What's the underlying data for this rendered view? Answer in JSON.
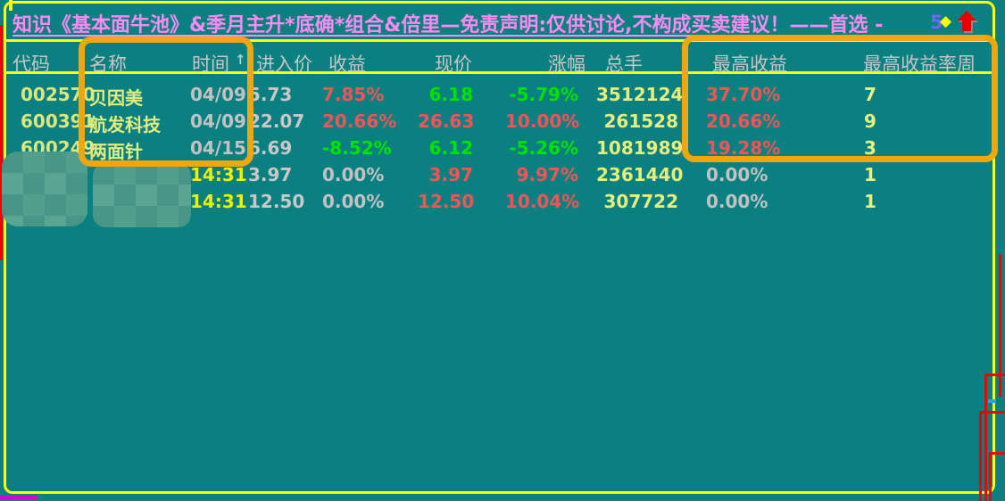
{
  "window": {
    "title": {
      "main": "知识《基本面牛池》&季月主升*底确*组合&倍里—免责声明:仅供讨论,不构成买卖建议！——首选 -",
      "number": "5",
      "diamond": "◆",
      "arrow_icon": "up-arrow-icon"
    }
  },
  "table": {
    "sort_icon": "↑",
    "sorted_column": "时间",
    "headers": [
      "代码",
      "名称",
      "时间",
      "进入价",
      "收益",
      "现价",
      "涨幅",
      "总手",
      "最高收益",
      "最高收益率周"
    ],
    "rows": [
      {
        "values": [
          "002570",
          "贝因美",
          "04/09",
          "5.73",
          "7.85%",
          "6.18",
          "-5.79%",
          "3512124",
          "37.70%",
          "7"
        ],
        "colors": [
          "code",
          "name",
          "date",
          "price",
          "red",
          "green",
          "green",
          "vol",
          "red",
          "week"
        ]
      },
      {
        "values": [
          "600391",
          "航发科技",
          "04/09",
          "22.07",
          "20.66%",
          "26.63",
          "10.00%",
          "261528",
          "20.66%",
          "9"
        ],
        "colors": [
          "code",
          "name",
          "date",
          "price",
          "red",
          "red",
          "red",
          "vol",
          "red",
          "week"
        ]
      },
      {
        "values": [
          "600249",
          "两面针",
          "04/15",
          "6.69",
          "-8.52%",
          "6.12",
          "-5.26%",
          "1081989",
          "19.28%",
          "3"
        ],
        "colors": [
          "code",
          "name",
          "date",
          "price",
          "green",
          "green",
          "green",
          "vol",
          "red",
          "week"
        ]
      },
      {
        "values": [
          "",
          "",
          "14:31",
          "3.97",
          "0.00%",
          "3.97",
          "9.97%",
          "2361440",
          "0.00%",
          "1"
        ],
        "colors": [
          "code",
          "name",
          "time",
          "price",
          "gray",
          "red",
          "red",
          "vol",
          "gray",
          "week"
        ]
      },
      {
        "values": [
          "",
          "",
          "14:31",
          "12.50",
          "0.00%",
          "12.50",
          "10.04%",
          "307722",
          "0.00%",
          "1"
        ],
        "colors": [
          "code",
          "name",
          "time",
          "price",
          "gray",
          "red",
          "red",
          "vol",
          "gray",
          "week"
        ]
      }
    ]
  },
  "colors": {
    "background_teal": "#0b8080",
    "border_yellow": "#ffff00",
    "highlight_orange": "#f0a60f",
    "title_pink": "#ff8af2",
    "title_number_blue": "#6a6af5",
    "header_gray": "#c6c6c6",
    "value_red": "#f25555",
    "value_green": "#00e300",
    "value_gray": "#c2c2c2",
    "value_yellow": "#e4ee7c",
    "time_yellow": "#eff000",
    "annotation_red": "#ee0202",
    "mosaic_teal": "#539f8e",
    "magenta_strip": "#d400d4"
  }
}
